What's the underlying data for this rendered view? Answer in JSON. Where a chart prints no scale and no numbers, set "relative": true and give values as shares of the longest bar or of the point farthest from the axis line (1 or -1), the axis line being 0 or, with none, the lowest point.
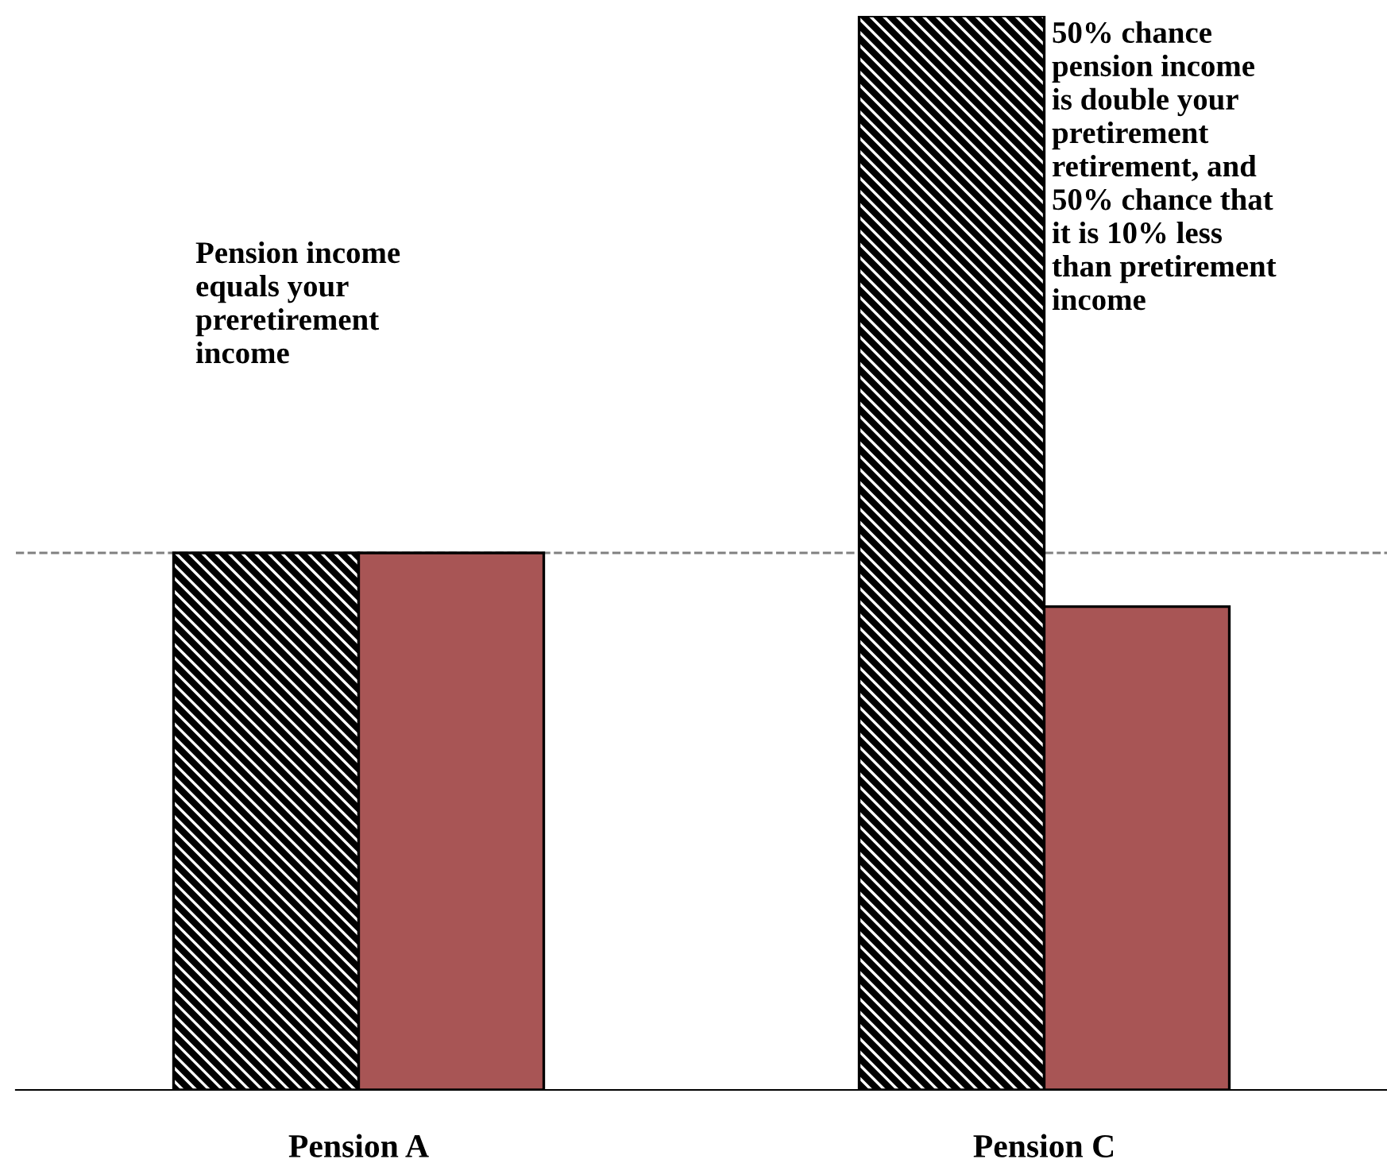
{
  "chart_data": {
    "type": "bar",
    "relative": true,
    "categories": [
      "Pension A",
      "Pension C"
    ],
    "series": [
      {
        "color": "#000000",
        "values": [
          0.5,
          1
        ]
      },
      {
        "color": "#a85555",
        "values": [
          0.5,
          0.45
        ]
      }
    ],
    "ref_lines": [
      {
        "axis": "y",
        "value": 0.5,
        "color": "#808080",
        "line_style": "dashed"
      }
    ],
    "annotations": [
      "Pension income\nequals your\npreretirement\nincome",
      "50% chance\npension income\nis double your\npretirement\nretirement, and\n50% chance that\nit is 10% less\nthan pretirement\nincome"
    ],
    "grid": false
  }
}
